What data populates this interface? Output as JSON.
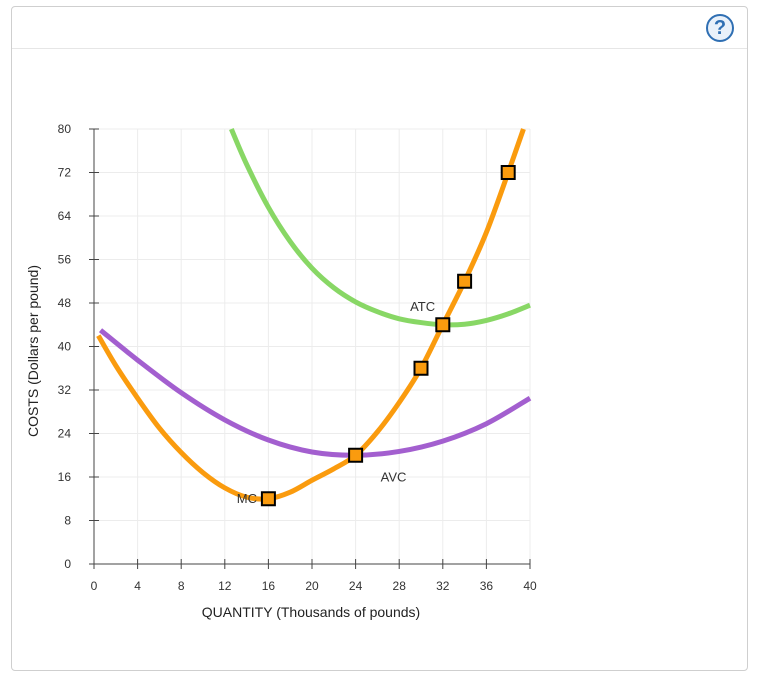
{
  "help": {
    "label": "?"
  },
  "chart_data": {
    "type": "line",
    "xlabel": "QUANTITY (Thousands of pounds)",
    "ylabel": "COSTS (Dollars per pound)",
    "xlim": [
      0,
      40
    ],
    "ylim": [
      0,
      80
    ],
    "xticks": [
      0,
      4,
      8,
      12,
      16,
      20,
      24,
      28,
      32,
      36,
      40
    ],
    "yticks": [
      0,
      8,
      16,
      24,
      32,
      40,
      48,
      56,
      64,
      72,
      80
    ],
    "grid": true,
    "series": [
      {
        "name": "ATC",
        "color": "#88d765",
        "x": [
          12.6,
          14,
          16,
          18,
          20,
          22,
          24,
          26,
          28,
          30,
          32,
          34,
          36,
          38,
          40
        ],
        "y": [
          80,
          73.5,
          65.6,
          59.3,
          54.4,
          50.8,
          48.2,
          46.4,
          45.1,
          44.4,
          44.0,
          44.1,
          44.8,
          46.0,
          47.6
        ]
      },
      {
        "name": "AVC",
        "color": "#a35fcf",
        "x": [
          0.6,
          4,
          8,
          12,
          16,
          20,
          24,
          28,
          32,
          36,
          40
        ],
        "y": [
          43,
          37.5,
          31.5,
          26.5,
          22.8,
          20.6,
          20.0,
          20.7,
          22.6,
          25.8,
          30.5
        ]
      },
      {
        "name": "MC",
        "color": "#fa9b0e",
        "x": [
          0.4,
          2,
          4,
          6,
          8,
          10,
          12,
          14,
          16,
          18,
          20,
          22,
          24,
          26,
          28,
          30,
          32,
          34,
          36,
          38,
          39.4
        ],
        "y": [
          42,
          36.5,
          30.5,
          25.0,
          20.5,
          16.8,
          14.0,
          12.3,
          12.0,
          13.2,
          15.4,
          17.5,
          20.0,
          24.3,
          29.7,
          36.0,
          44.0,
          52.0,
          61.0,
          72.0,
          80.0
        ],
        "markers": [
          {
            "x": 16,
            "y": 12
          },
          {
            "x": 24,
            "y": 20
          },
          {
            "x": 30,
            "y": 36
          },
          {
            "x": 32,
            "y": 44
          },
          {
            "x": 34,
            "y": 52
          },
          {
            "x": 38,
            "y": 72
          }
        ]
      }
    ],
    "annotations": [
      {
        "text": "ATC",
        "x": 29,
        "y": 46.5
      },
      {
        "text": "AVC",
        "x": 26.3,
        "y": 15.2
      },
      {
        "text": "MC",
        "x": 13.1,
        "y": 11.2
      }
    ]
  }
}
